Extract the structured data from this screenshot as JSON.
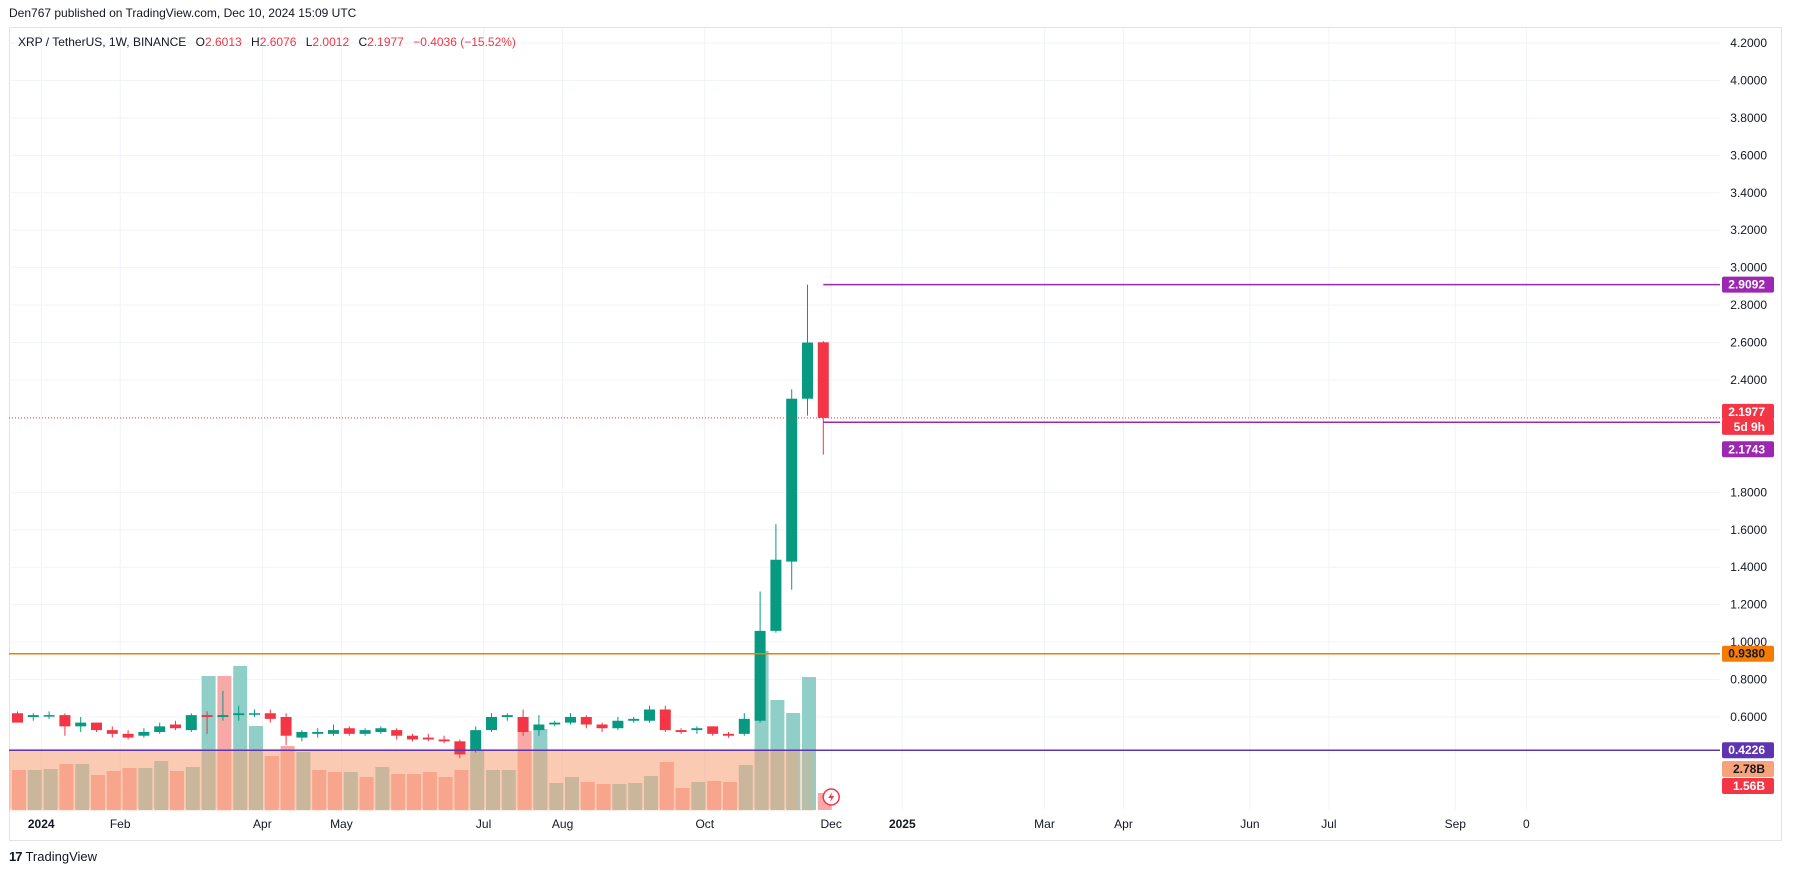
{
  "header": {
    "published": "Den767 published on TradingView.com, Dec 10, 2024 15:09 UTC"
  },
  "legend": {
    "symbol": "XRP / TetherUS, 1W, BINANCE",
    "o_label": "O",
    "o_value": "2.6013",
    "h_label": "H",
    "h_value": "2.6076",
    "l_label": "L",
    "l_value": "2.0012",
    "c_label": "C",
    "c_value": "2.1977",
    "change": "−0.4036 (−15.52%)"
  },
  "footer": {
    "brand": "TradingView",
    "brand_mark": "17"
  },
  "colors": {
    "up": "#089981",
    "down": "#f23645",
    "vol_up": "#8fcfc7",
    "vol_down": "#f7a9a7",
    "resistance": "#9c27b0",
    "support_orange": "#f57c00",
    "support_purple": "#5e35b1",
    "grid": "#f0f3fa",
    "text": "#131722",
    "vp_bar": "#f7a27a"
  },
  "chart_data": {
    "type": "candlestick",
    "interval": "1W",
    "y_axis": {
      "ticks": [
        "4.2000",
        "4.0000",
        "3.8000",
        "3.6000",
        "3.4000",
        "3.2000",
        "3.0000",
        "2.8000",
        "2.6000",
        "2.4000",
        "1.8000",
        "1.6000",
        "1.4000",
        "1.2000",
        "1.0000",
        "0.8000",
        "0.6000"
      ],
      "range": [
        0.15,
        4.33
      ]
    },
    "x_axis": {
      "labels": [
        {
          "text": "2024",
          "bold": true,
          "index": 1.5
        },
        {
          "text": "Feb",
          "index": 6.5
        },
        {
          "text": "Apr",
          "index": 15.5
        },
        {
          "text": "May",
          "index": 20.5
        },
        {
          "text": "Jul",
          "index": 29.5
        },
        {
          "text": "Aug",
          "index": 34.5
        },
        {
          "text": "Oct",
          "index": 43.5
        },
        {
          "text": "Dec",
          "index": 51.5
        },
        {
          "text": "2025",
          "bold": true,
          "index": 56
        },
        {
          "text": "Mar",
          "index": 65
        },
        {
          "text": "Apr",
          "index": 70
        },
        {
          "text": "Jun",
          "index": 78
        },
        {
          "text": "Jul",
          "index": 83
        },
        {
          "text": "Sep",
          "index": 91
        },
        {
          "text": "0",
          "index": 95.5
        }
      ]
    },
    "candles": [
      {
        "o": 0.62,
        "h": 0.63,
        "l": 0.57,
        "c": 0.57
      },
      {
        "o": 0.6,
        "h": 0.62,
        "l": 0.58,
        "c": 0.61
      },
      {
        "o": 0.61,
        "h": 0.63,
        "l": 0.59,
        "c": 0.61
      },
      {
        "o": 0.61,
        "h": 0.62,
        "l": 0.5,
        "c": 0.55
      },
      {
        "o": 0.55,
        "h": 0.6,
        "l": 0.52,
        "c": 0.57
      },
      {
        "o": 0.57,
        "h": 0.57,
        "l": 0.52,
        "c": 0.53
      },
      {
        "o": 0.53,
        "h": 0.55,
        "l": 0.49,
        "c": 0.51
      },
      {
        "o": 0.51,
        "h": 0.53,
        "l": 0.48,
        "c": 0.49
      },
      {
        "o": 0.5,
        "h": 0.54,
        "l": 0.49,
        "c": 0.52
      },
      {
        "o": 0.52,
        "h": 0.57,
        "l": 0.51,
        "c": 0.55
      },
      {
        "o": 0.56,
        "h": 0.58,
        "l": 0.53,
        "c": 0.54
      },
      {
        "o": 0.53,
        "h": 0.62,
        "l": 0.52,
        "c": 0.61
      },
      {
        "o": 0.61,
        "h": 0.63,
        "l": 0.51,
        "c": 0.6
      },
      {
        "o": 0.6,
        "h": 0.74,
        "l": 0.58,
        "c": 0.61
      },
      {
        "o": 0.61,
        "h": 0.66,
        "l": 0.58,
        "c": 0.62
      },
      {
        "o": 0.62,
        "h": 0.64,
        "l": 0.6,
        "c": 0.62
      },
      {
        "o": 0.62,
        "h": 0.64,
        "l": 0.57,
        "c": 0.59
      },
      {
        "o": 0.6,
        "h": 0.62,
        "l": 0.45,
        "c": 0.5
      },
      {
        "o": 0.49,
        "h": 0.53,
        "l": 0.47,
        "c": 0.52
      },
      {
        "o": 0.51,
        "h": 0.54,
        "l": 0.49,
        "c": 0.52
      },
      {
        "o": 0.51,
        "h": 0.56,
        "l": 0.5,
        "c": 0.53
      },
      {
        "o": 0.54,
        "h": 0.55,
        "l": 0.5,
        "c": 0.51
      },
      {
        "o": 0.51,
        "h": 0.54,
        "l": 0.5,
        "c": 0.53
      },
      {
        "o": 0.52,
        "h": 0.55,
        "l": 0.51,
        "c": 0.54
      },
      {
        "o": 0.53,
        "h": 0.54,
        "l": 0.48,
        "c": 0.5
      },
      {
        "o": 0.5,
        "h": 0.51,
        "l": 0.47,
        "c": 0.48
      },
      {
        "o": 0.49,
        "h": 0.51,
        "l": 0.47,
        "c": 0.48
      },
      {
        "o": 0.48,
        "h": 0.5,
        "l": 0.46,
        "c": 0.47
      },
      {
        "o": 0.47,
        "h": 0.48,
        "l": 0.38,
        "c": 0.4
      },
      {
        "o": 0.42,
        "h": 0.55,
        "l": 0.41,
        "c": 0.53
      },
      {
        "o": 0.53,
        "h": 0.62,
        "l": 0.52,
        "c": 0.6
      },
      {
        "o": 0.6,
        "h": 0.62,
        "l": 0.58,
        "c": 0.61
      },
      {
        "o": 0.6,
        "h": 0.64,
        "l": 0.5,
        "c": 0.52
      },
      {
        "o": 0.53,
        "h": 0.61,
        "l": 0.5,
        "c": 0.56
      },
      {
        "o": 0.56,
        "h": 0.58,
        "l": 0.55,
        "c": 0.57
      },
      {
        "o": 0.57,
        "h": 0.62,
        "l": 0.56,
        "c": 0.6
      },
      {
        "o": 0.6,
        "h": 0.61,
        "l": 0.54,
        "c": 0.56
      },
      {
        "o": 0.56,
        "h": 0.57,
        "l": 0.52,
        "c": 0.54
      },
      {
        "o": 0.54,
        "h": 0.6,
        "l": 0.53,
        "c": 0.58
      },
      {
        "o": 0.58,
        "h": 0.6,
        "l": 0.57,
        "c": 0.59
      },
      {
        "o": 0.58,
        "h": 0.66,
        "l": 0.57,
        "c": 0.64
      },
      {
        "o": 0.64,
        "h": 0.66,
        "l": 0.52,
        "c": 0.53
      },
      {
        "o": 0.53,
        "h": 0.54,
        "l": 0.51,
        "c": 0.52
      },
      {
        "o": 0.53,
        "h": 0.55,
        "l": 0.51,
        "c": 0.54
      },
      {
        "o": 0.55,
        "h": 0.55,
        "l": 0.5,
        "c": 0.51
      },
      {
        "o": 0.51,
        "h": 0.52,
        "l": 0.49,
        "c": 0.5
      },
      {
        "o": 0.51,
        "h": 0.62,
        "l": 0.5,
        "c": 0.59
      },
      {
        "o": 0.58,
        "h": 1.27,
        "l": 0.57,
        "c": 1.06
      },
      {
        "o": 1.06,
        "h": 1.63,
        "l": 1.05,
        "c": 1.44
      },
      {
        "o": 1.43,
        "h": 2.35,
        "l": 1.28,
        "c": 2.3
      },
      {
        "o": 2.3,
        "h": 2.9092,
        "l": 2.21,
        "c": 2.6
      },
      {
        "o": 2.6013,
        "h": 2.6076,
        "l": 2.0012,
        "c": 2.1977
      }
    ],
    "volume_bars": [
      {
        "v": 0.4,
        "up": false
      },
      {
        "v": 0.4,
        "up": true
      },
      {
        "v": 0.41,
        "up": true
      },
      {
        "v": 0.46,
        "up": false
      },
      {
        "v": 0.46,
        "up": true
      },
      {
        "v": 0.35,
        "up": false
      },
      {
        "v": 0.39,
        "up": false
      },
      {
        "v": 0.42,
        "up": false
      },
      {
        "v": 0.42,
        "up": true
      },
      {
        "v": 0.49,
        "up": true
      },
      {
        "v": 0.39,
        "up": false
      },
      {
        "v": 0.43,
        "up": true
      },
      {
        "v": 1.34,
        "up": true
      },
      {
        "v": 1.34,
        "up": false
      },
      {
        "v": 1.44,
        "up": true
      },
      {
        "v": 0.84,
        "up": true
      },
      {
        "v": 0.54,
        "up": false
      },
      {
        "v": 0.64,
        "up": false
      },
      {
        "v": 0.58,
        "up": true
      },
      {
        "v": 0.4,
        "up": false
      },
      {
        "v": 0.38,
        "up": false
      },
      {
        "v": 0.38,
        "up": true
      },
      {
        "v": 0.33,
        "up": false
      },
      {
        "v": 0.43,
        "up": true
      },
      {
        "v": 0.36,
        "up": false
      },
      {
        "v": 0.36,
        "up": false
      },
      {
        "v": 0.38,
        "up": false
      },
      {
        "v": 0.33,
        "up": false
      },
      {
        "v": 0.4,
        "up": false
      },
      {
        "v": 0.6,
        "up": true
      },
      {
        "v": 0.4,
        "up": true
      },
      {
        "v": 0.4,
        "up": true
      },
      {
        "v": 0.79,
        "up": false
      },
      {
        "v": 0.81,
        "up": true
      },
      {
        "v": 0.27,
        "up": true
      },
      {
        "v": 0.33,
        "up": true
      },
      {
        "v": 0.28,
        "up": false
      },
      {
        "v": 0.26,
        "up": false
      },
      {
        "v": 0.26,
        "up": true
      },
      {
        "v": 0.27,
        "up": true
      },
      {
        "v": 0.34,
        "up": true
      },
      {
        "v": 0.48,
        "up": false
      },
      {
        "v": 0.22,
        "up": false
      },
      {
        "v": 0.28,
        "up": true
      },
      {
        "v": 0.29,
        "up": false
      },
      {
        "v": 0.28,
        "up": false
      },
      {
        "v": 0.45,
        "up": true
      },
      {
        "v": 1.59,
        "up": true
      },
      {
        "v": 1.1,
        "up": true
      },
      {
        "v": 0.97,
        "up": true
      },
      {
        "v": 1.33,
        "up": true
      },
      {
        "v": 0.17,
        "up": false
      }
    ],
    "volume_scale_max": 1.6,
    "volume_profile": [
      {
        "price": 0.42,
        "width": 0.95
      },
      {
        "price": 0.41,
        "width": 0.97
      }
    ],
    "levels": [
      {
        "price": 2.9092,
        "label": "2.9092",
        "color": "#9c27b0",
        "from_index": 51,
        "style": "solid"
      },
      {
        "price": 2.1743,
        "label": "2.1743",
        "color": "#9c27b0",
        "from_index": 51,
        "style": "solid"
      },
      {
        "price": 0.938,
        "label": "0.9380",
        "color": "#f57c00",
        "from_index": 0,
        "style": "solid"
      },
      {
        "price": 0.4226,
        "label": "0.4226",
        "color": "#5e35b1",
        "from_index": 0,
        "style": "solid"
      }
    ],
    "current_price": {
      "label": "2.1977",
      "countdown": "5d 9h",
      "color": "#f23645"
    },
    "volume_labels": [
      {
        "label": "2.78B",
        "color": "#f7a27a"
      },
      {
        "label": "1.56B",
        "color": "#f23645"
      }
    ]
  }
}
